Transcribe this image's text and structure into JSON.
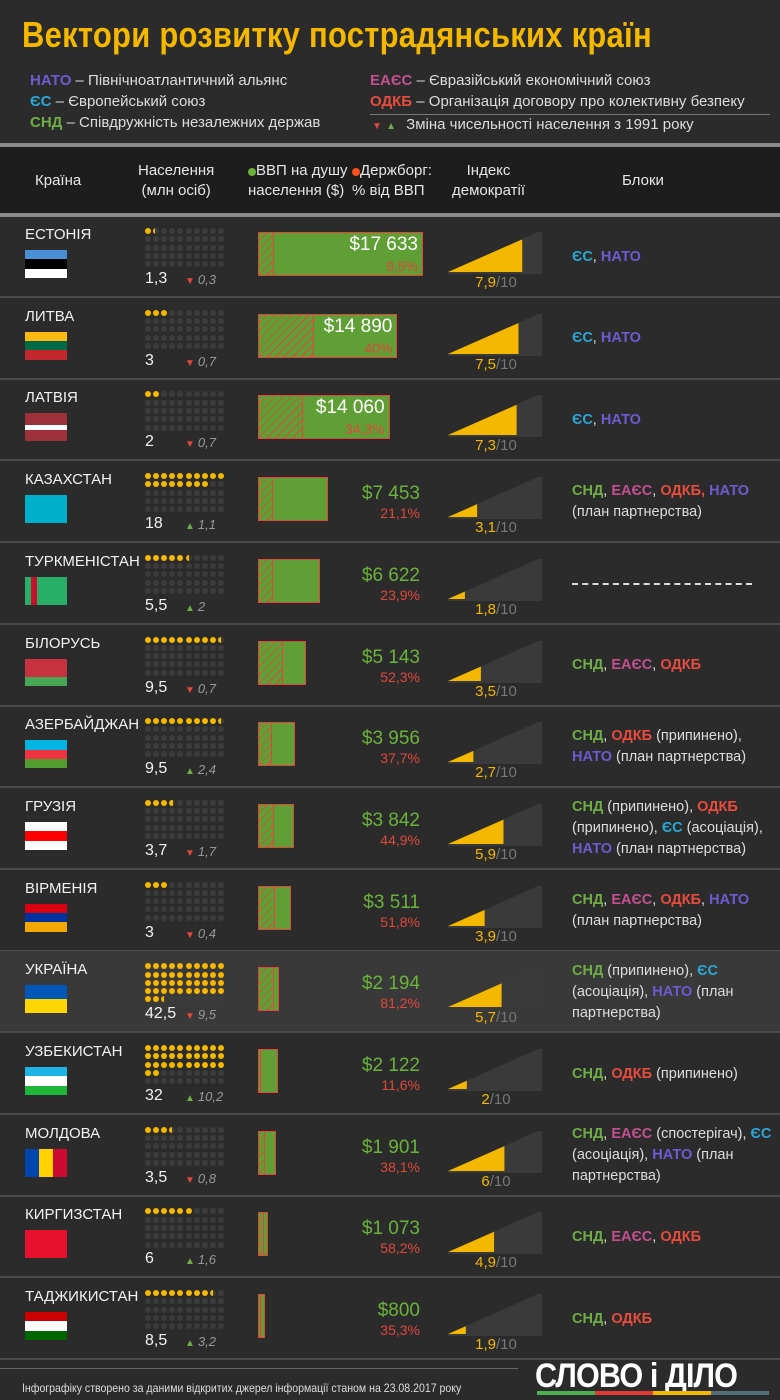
{
  "title": "Вектори розвитку пострадянських країн",
  "legend": {
    "left": [
      {
        "abbr": "НАТО",
        "bloc": "NATO",
        "text": " – Північноатлантичний альянс"
      },
      {
        "abbr": "ЄС",
        "bloc": "EU",
        "text": " – Європейський союз"
      },
      {
        "abbr": "СНД",
        "bloc": "CIS",
        "text": " – Співдружність незалежних держав"
      }
    ],
    "right": [
      {
        "abbr": "ЕАЄС",
        "bloc": "EAEU",
        "text": " – Євразійський економічний союз"
      },
      {
        "abbr": "ОДКБ",
        "bloc": "CSTO",
        "text": " – Організація договору про колективну безпеку"
      }
    ],
    "change_note": "Зміна чисельності населення з 1991 року"
  },
  "header": {
    "country": "Країна",
    "population": "Населення\n(млн осіб)",
    "gdp": "ВВП на душу\nнаселення ($)",
    "debt": "Держборг:\n% від ВВП",
    "democracy": "Індекс\nдемократії",
    "blocs": "Блоки"
  },
  "colors": {
    "accent": "#f5b800",
    "gdp": "#5f9f35",
    "debt": "#e0483c",
    "NATO": "#6e5bd1",
    "EU": "#29a8d6",
    "CIS": "#6fad46",
    "EAEU": "#c4508f",
    "CSTO": "#e84c3d"
  },
  "chart_data": {
    "type": "table",
    "population_unit": "млн осіб",
    "democracy_max": 10,
    "countries": [
      {
        "name": "ЕСТОНІЯ",
        "population": 1.3,
        "population_label": "1,3",
        "change": "0,3",
        "change_dir": "down",
        "gdp": 17633,
        "gdp_label": "$17 633",
        "debt": 9.5,
        "debt_label": "9,5%",
        "democracy": 7.9,
        "democracy_label": "7,9",
        "flag": {
          "dir": "h",
          "stripes": [
            "#4a8fd6",
            "#000000",
            "#ffffff"
          ]
        },
        "blocs": [
          {
            "t": "ЄС",
            "b": "EU"
          },
          {
            "t": ", "
          },
          {
            "t": "НАТО",
            "b": "NATO"
          }
        ]
      },
      {
        "name": "ЛИТВА",
        "population": 3,
        "population_label": "3",
        "change": "0,7",
        "change_dir": "down",
        "gdp": 14890,
        "gdp_label": "$14 890",
        "debt": 40,
        "debt_label": "40%",
        "democracy": 7.5,
        "democracy_label": "7,5",
        "flag": {
          "dir": "h",
          "stripes": [
            "#fdb913",
            "#006a44",
            "#c1272d"
          ]
        },
        "blocs": [
          {
            "t": "ЄС",
            "b": "EU"
          },
          {
            "t": ", "
          },
          {
            "t": "НАТО",
            "b": "NATO"
          }
        ]
      },
      {
        "name": "ЛАТВІЯ",
        "population": 2,
        "population_label": "2",
        "change": "0,7",
        "change_dir": "down",
        "gdp": 14060,
        "gdp_label": "$14 060",
        "debt": 34.3,
        "debt_label": "34,3%",
        "democracy": 7.3,
        "democracy_label": "7,3",
        "flag": {
          "dir": "h",
          "stripes": [
            "#9e3039",
            "#9e3039",
            "#ffffff",
            "#9e3039",
            "#9e3039"
          ]
        },
        "blocs": [
          {
            "t": "ЄС",
            "b": "EU"
          },
          {
            "t": ", "
          },
          {
            "t": "НАТО",
            "b": "NATO"
          }
        ]
      },
      {
        "name": "КАЗАХСТАН",
        "population": 18,
        "population_label": "18",
        "change": "1,1",
        "change_dir": "up",
        "gdp": 7453,
        "gdp_label": "$7 453",
        "debt": 21.1,
        "debt_label": "21,1%",
        "democracy": 3.1,
        "democracy_label": "3,1",
        "flag": {
          "dir": "h",
          "stripes": [
            "#00afca"
          ]
        },
        "blocs": [
          {
            "t": "СНД",
            "b": "CIS"
          },
          {
            "t": ", "
          },
          {
            "t": "ЕАЄС",
            "b": "EAEU"
          },
          {
            "t": ", "
          },
          {
            "t": "ОДКБ,",
            "b": "CSTO"
          },
          {
            "t": " "
          },
          {
            "t": "НАТО",
            "b": "NATO"
          },
          {
            "t": " (план партнерства)"
          }
        ]
      },
      {
        "name": "ТУРКМЕНІСТАН",
        "population": 5.5,
        "population_label": "5,5",
        "change": "2",
        "change_dir": "up",
        "gdp": 6622,
        "gdp_label": "$6 622",
        "debt": 23.9,
        "debt_label": "23,9%",
        "democracy": 1.8,
        "democracy_label": "1,8",
        "flag": {
          "dir": "v",
          "stripes": [
            "#28ae66",
            "#c8102e",
            "#28ae66",
            "#28ae66",
            "#28ae66",
            "#28ae66",
            "#28ae66"
          ]
        },
        "blocs": []
      },
      {
        "name": "БІЛОРУСЬ",
        "population": 9.5,
        "population_label": "9,5",
        "change": "0,7",
        "change_dir": "down",
        "gdp": 5143,
        "gdp_label": "$5 143",
        "debt": 52.3,
        "debt_label": "52,3%",
        "democracy": 3.5,
        "democracy_label": "3,5",
        "flag": {
          "dir": "h",
          "stripes": [
            "#c8313e",
            "#c8313e",
            "#4aa657"
          ]
        },
        "blocs": [
          {
            "t": "СНД",
            "b": "CIS"
          },
          {
            "t": ", "
          },
          {
            "t": "ЕАЄС",
            "b": "EAEU"
          },
          {
            "t": ", "
          },
          {
            "t": "ОДКБ",
            "b": "CSTO"
          }
        ]
      },
      {
        "name": "АЗЕРБАЙДЖАН",
        "population": 9.5,
        "population_label": "9,5",
        "change": "2,4",
        "change_dir": "up",
        "gdp": 3956,
        "gdp_label": "$3 956",
        "debt": 37.7,
        "debt_label": "37,7%",
        "democracy": 2.7,
        "democracy_label": "2,7",
        "flag": {
          "dir": "h",
          "stripes": [
            "#00b5e2",
            "#ef3340",
            "#509e2f"
          ]
        },
        "blocs": [
          {
            "t": "СНД",
            "b": "CIS"
          },
          {
            "t": ", "
          },
          {
            "t": "ОДКБ",
            "b": "CSTO"
          },
          {
            "t": " (припинено), "
          },
          {
            "t": "НАТО",
            "b": "NATO"
          },
          {
            "t": " (план партнерства)"
          }
        ]
      },
      {
        "name": "ГРУЗІЯ",
        "population": 3.7,
        "population_label": "3,7",
        "change": "1,7",
        "change_dir": "down",
        "gdp": 3842,
        "gdp_label": "$3 842",
        "debt": 44.9,
        "debt_label": "44,9%",
        "democracy": 5.9,
        "democracy_label": "5,9",
        "flag": {
          "dir": "h",
          "stripes": [
            "#ffffff",
            "#ff0000",
            "#ffffff"
          ]
        },
        "blocs": [
          {
            "t": "СНД",
            "b": "CIS"
          },
          {
            "t": " (припинено), "
          },
          {
            "t": "ОДКБ",
            "b": "CSTO"
          },
          {
            "t": " (припинено), "
          },
          {
            "t": "ЄС",
            "b": "EU"
          },
          {
            "t": " (асоціація), "
          },
          {
            "t": "НАТО",
            "b": "NATO"
          },
          {
            "t": " (план партнерства)"
          }
        ]
      },
      {
        "name": "ВІРМЕНІЯ",
        "population": 3,
        "population_label": "3",
        "change": "0,4",
        "change_dir": "down",
        "gdp": 3511,
        "gdp_label": "$3 511",
        "debt": 51.8,
        "debt_label": "51,8%",
        "democracy": 3.9,
        "democracy_label": "3,9",
        "flag": {
          "dir": "h",
          "stripes": [
            "#d90012",
            "#0033a0",
            "#f2a800"
          ]
        },
        "blocs": [
          {
            "t": "СНД",
            "b": "CIS"
          },
          {
            "t": ", "
          },
          {
            "t": "ЕАЄС",
            "b": "EAEU"
          },
          {
            "t": ", "
          },
          {
            "t": "ОДКБ",
            "b": "CSTO"
          },
          {
            "t": ", "
          },
          {
            "t": "НАТО",
            "b": "NATO"
          },
          {
            "t": " (план партнерства)"
          }
        ]
      },
      {
        "name": "УКРАЇНА",
        "population": 42.5,
        "population_label": "42,5",
        "change": "9,5",
        "change_dir": "down",
        "gdp": 2194,
        "gdp_label": "$2 194",
        "debt": 81.2,
        "debt_label": "81,2%",
        "democracy": 5.7,
        "democracy_label": "5,7",
        "highlight": true,
        "flag": {
          "dir": "h",
          "stripes": [
            "#0057b7",
            "#ffd700"
          ]
        },
        "blocs": [
          {
            "t": "СНД",
            "b": "CIS"
          },
          {
            "t": " (припинено), "
          },
          {
            "t": "ЄС",
            "b": "EU"
          },
          {
            "t": " (асоціація), "
          },
          {
            "t": "НАТО",
            "b": "NATO"
          },
          {
            "t": " (план партнерства)"
          }
        ]
      },
      {
        "name": "УЗБЕКИСТАН",
        "population": 32,
        "population_label": "32",
        "change": "10,2",
        "change_dir": "up",
        "gdp": 2122,
        "gdp_label": "$2 122",
        "debt": 11.6,
        "debt_label": "11,6%",
        "democracy": 2,
        "democracy_label": "2",
        "flag": {
          "dir": "h",
          "stripes": [
            "#1eb5e6",
            "#ffffff",
            "#1eb53a"
          ]
        },
        "blocs": [
          {
            "t": "СНД",
            "b": "CIS"
          },
          {
            "t": ", "
          },
          {
            "t": "ОДКБ",
            "b": "CSTO"
          },
          {
            "t": " (припинено)"
          }
        ]
      },
      {
        "name": "МОЛДОВА",
        "population": 3.5,
        "population_label": "3,5",
        "change": "0,8",
        "change_dir": "down",
        "gdp": 1901,
        "gdp_label": "$1 901",
        "debt": 38.1,
        "debt_label": "38,1%",
        "democracy": 6,
        "democracy_label": "6",
        "flag": {
          "dir": "v",
          "stripes": [
            "#0046ae",
            "#ffd200",
            "#cc092f"
          ]
        },
        "blocs": [
          {
            "t": "СНД",
            "b": "CIS"
          },
          {
            "t": ", "
          },
          {
            "t": "ЕАЄС",
            "b": "EAEU"
          },
          {
            "t": " (спостерігач), "
          },
          {
            "t": "ЄС",
            "b": "EU"
          },
          {
            "t": " (асоціація), "
          },
          {
            "t": "НАТО",
            "b": "NATO"
          },
          {
            "t": " (план партнерства)"
          }
        ]
      },
      {
        "name": "КИРГИЗСТАН",
        "population": 6,
        "population_label": "6",
        "change": "1,6",
        "change_dir": "up",
        "gdp": 1073,
        "gdp_label": "$1 073",
        "debt": 58.2,
        "debt_label": "58,2%",
        "democracy": 4.9,
        "democracy_label": "4,9",
        "flag": {
          "dir": "h",
          "stripes": [
            "#e8112d"
          ]
        },
        "blocs": [
          {
            "t": "СНД",
            "b": "CIS"
          },
          {
            "t": ", "
          },
          {
            "t": "ЕАЄС",
            "b": "EAEU"
          },
          {
            "t": ", "
          },
          {
            "t": "ОДКБ",
            "b": "CSTO"
          }
        ]
      },
      {
        "name": "ТАДЖИКИСТАН",
        "population": 8.5,
        "population_label": "8,5",
        "change": "3,2",
        "change_dir": "up",
        "gdp": 800,
        "gdp_label": "$800",
        "debt": 35.3,
        "debt_label": "35,3%",
        "democracy": 1.9,
        "democracy_label": "1,9",
        "flag": {
          "dir": "h",
          "stripes": [
            "#cc0000",
            "#ffffff",
            "#006600"
          ]
        },
        "blocs": [
          {
            "t": "СНД",
            "b": "CIS"
          },
          {
            "t": ", "
          },
          {
            "t": "ОДКБ",
            "b": "CSTO"
          }
        ]
      }
    ]
  },
  "democracy_suffix": "/10",
  "footer": {
    "source": "Інфографіку створено за даними відкритих джерел інформації станом на 23.08.2017 року"
  },
  "logo": {
    "text": "СЛОВО і ДІЛО",
    "bar_colors": [
      "#4caf50",
      "#e53935",
      "#f5b800",
      "#546e7a"
    ]
  }
}
